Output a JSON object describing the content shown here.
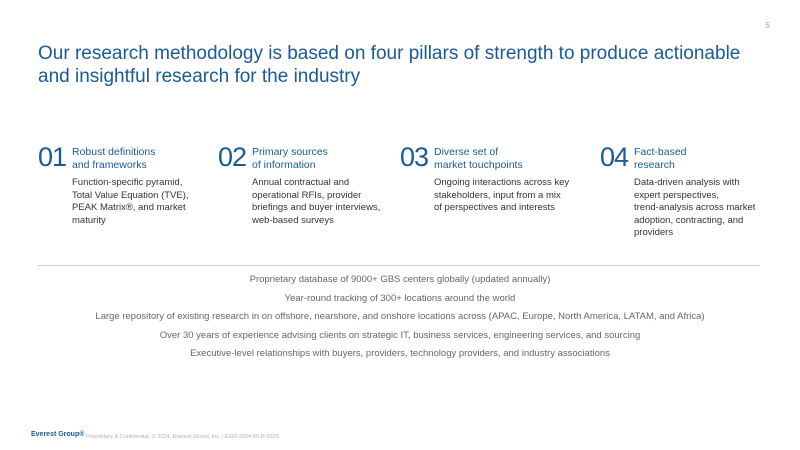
{
  "page_number": "5",
  "title": "Our research methodology is based on four pillars of strength to produce actionable and insightful research for the industry",
  "pillars": [
    {
      "number": "01",
      "heading": [
        "Robust definitions",
        "and frameworks"
      ],
      "description": [
        "Function-specific pyramid,",
        "Total Value Equation (TVE),",
        "PEAK Matrix®, and market",
        "maturity"
      ]
    },
    {
      "number": "02",
      "heading": [
        "Primary sources",
        "of information"
      ],
      "description": [
        "Annual contractual and",
        "operational RFIs, provider",
        "briefings and buyer interviews,",
        "web-based surveys"
      ]
    },
    {
      "number": "03",
      "heading": [
        "Diverse set of",
        "market touchpoints"
      ],
      "description": [
        "Ongoing interactions across key",
        "stakeholders, input from a mix",
        "of perspectives and interests"
      ]
    },
    {
      "number": "04",
      "heading": [
        "Fact-based",
        "research"
      ],
      "description": [
        "Data-driven analysis with",
        "expert perspectives,",
        "trend-analysis across market",
        "adoption, contracting, and",
        "providers"
      ]
    }
  ],
  "assets": [
    "Proprietary database of 9000+ GBS centers globally (updated annually)",
    "Year-round tracking of 300+ locations around the world",
    "Large repository of existing research in on offshore, nearshore, and onshore locations across (APAC, Europe, North America, LATAM, and Africa)",
    "Over 30 years of experience advising clients on strategic IT, business services, engineering services, and sourcing",
    "Executive-level relationships with buyers, providers, technology providers, and industry associations"
  ],
  "footer": {
    "logo": "Everest Group®",
    "text": "Proprietary & Confidential. © 2024, Everest Global, Inc. | EGR-2024-55-R-6529"
  }
}
